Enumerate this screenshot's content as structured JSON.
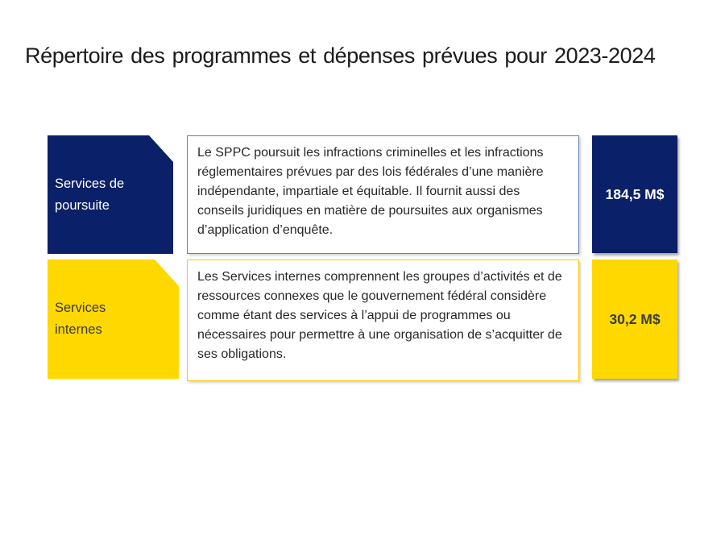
{
  "title": "Répertoire des programmes et dépenses prévues pour 2023-2024",
  "colors": {
    "background": "#ffffff",
    "title_text": "#1b1b1b",
    "body_text": "#282828",
    "navy": "#0a2068",
    "gold": "#ffd800",
    "desc_border_blue": "#5b84b5",
    "desc_border_gold": "#fec800"
  },
  "rows": [
    {
      "label": "Services de poursuite",
      "description": "Le SPPC poursuit les infractions criminelles et les infractions réglementaires prévues par des lois fédérales d’une manière indépendante, impartiale et équitable. Il fournit aussi des conseils juridiques en matière de poursuites aux organismes d’application d’enquête.",
      "amount": "184,5 M$",
      "fill": "#0a2068",
      "label_text_color": "#ffffff",
      "amount_text_color": "#ffffff",
      "border_color": "#5b84b5"
    },
    {
      "label": "Services internes",
      "description": "Les Services internes comprennent les groupes d’activités et de ressources connexes que le gouvernement fédéral considère comme étant des services à l’appui de programmes ou nécessaires pour permettre à une organisation de s’acquitter de ses obligations.",
      "amount": "30,2 M$",
      "fill": "#ffd800",
      "label_text_color": "#3b3b3b",
      "amount_text_color": "#3b3b3b",
      "border_color": "#fec800"
    }
  ]
}
